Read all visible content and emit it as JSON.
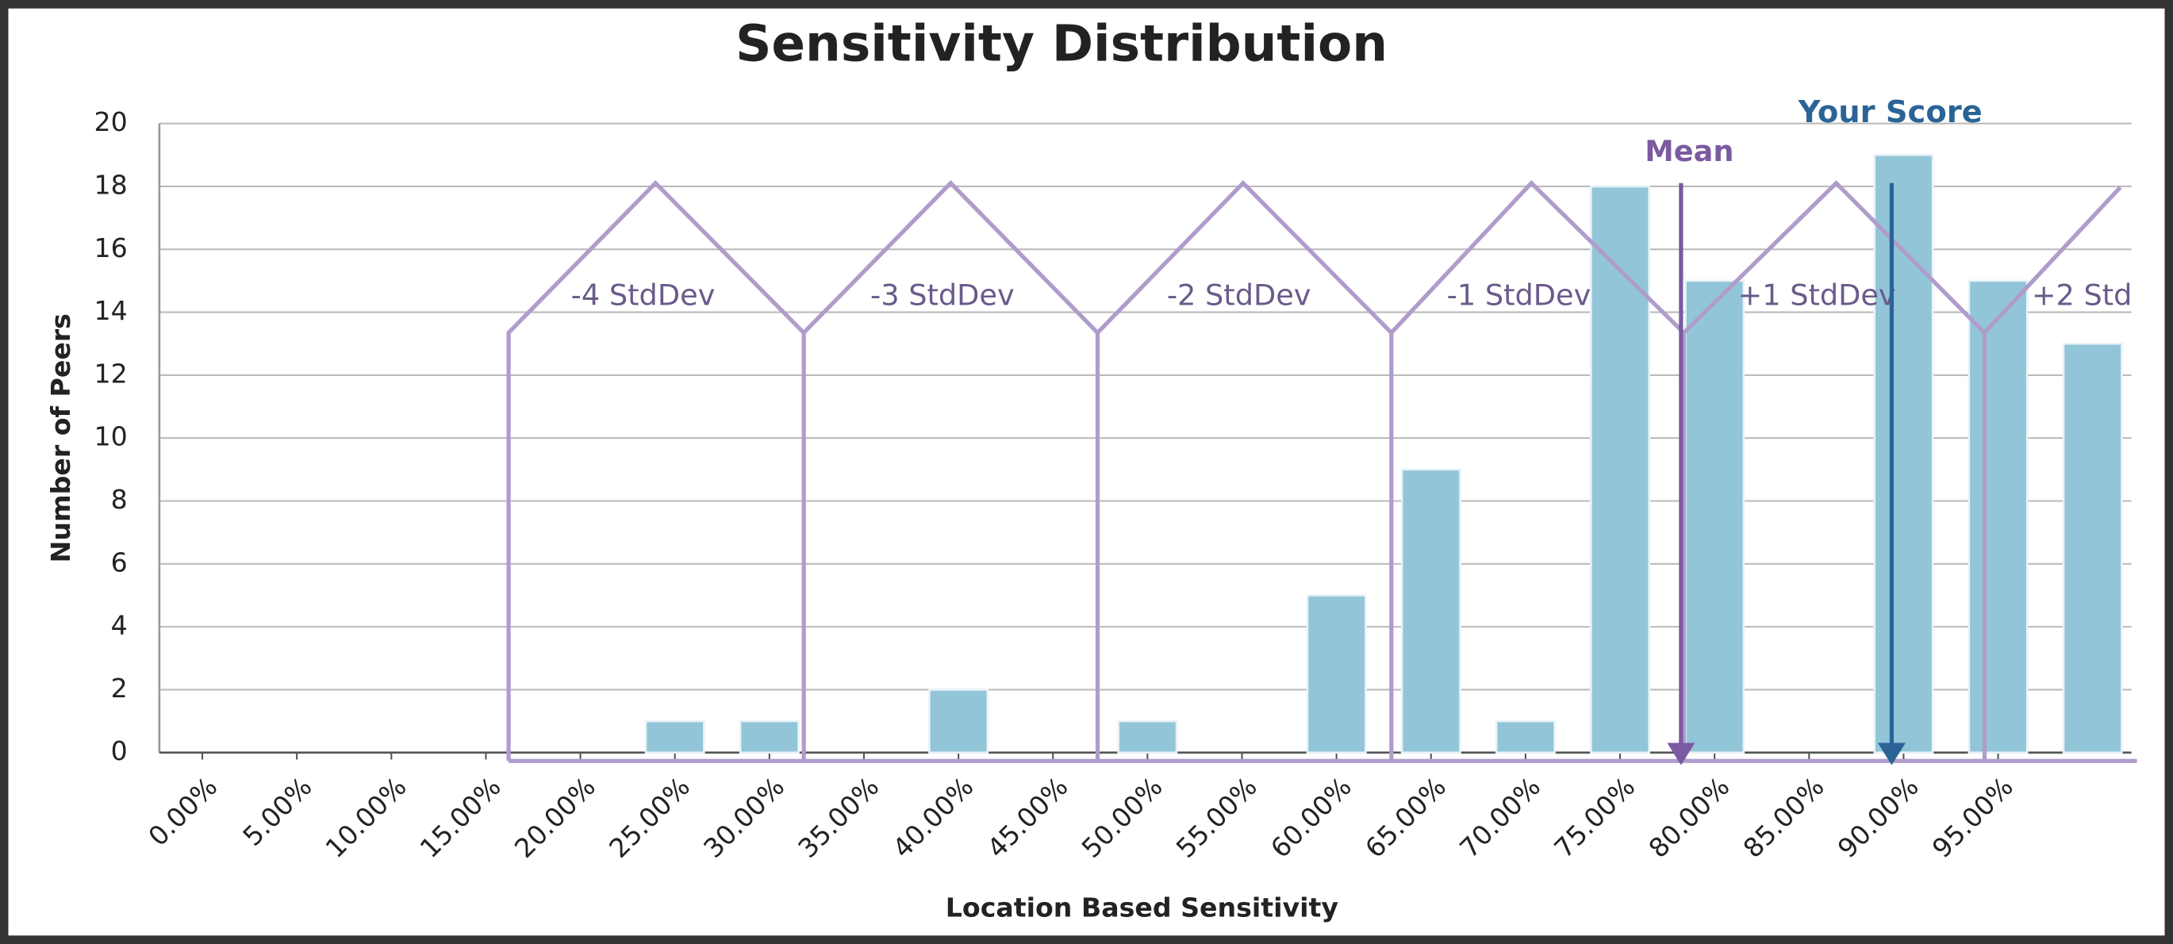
{
  "chart_data": {
    "type": "bar",
    "title": "Sensitivity Distribution",
    "x_label": "Location  Based Sensitivity",
    "y_label": "Number of Peers",
    "categories": [
      "0.00%",
      "5.00%",
      "10.00%",
      "15.00%",
      "20.00%",
      "25.00%",
      "30.00%",
      "35.00%",
      "40.00%",
      "45.00%",
      "50.00%",
      "55.00%",
      "60.00%",
      "65.00%",
      "70.00%",
      "75.00%",
      "80.00%",
      "85.00%",
      "90.00%",
      "95.00%",
      null
    ],
    "values": [
      0,
      0,
      0,
      0,
      0,
      1,
      1,
      0,
      2,
      0,
      1,
      0,
      5,
      9,
      1,
      18,
      15,
      0,
      19,
      15,
      13
    ],
    "color": "#92c5d8",
    "ylim": [
      0,
      20
    ],
    "yticks": [
      0,
      2,
      4,
      6,
      8,
      10,
      12,
      14,
      16,
      18,
      20
    ],
    "grid": true,
    "annotations": {
      "mean": "Mean",
      "your_score": "Your Score",
      "stddev": [
        "-4 StdDev",
        "-3 StdDev",
        "-2 StdDev",
        "-1 StdDev",
        "+1 StdDev",
        "+2 Std"
      ]
    }
  }
}
